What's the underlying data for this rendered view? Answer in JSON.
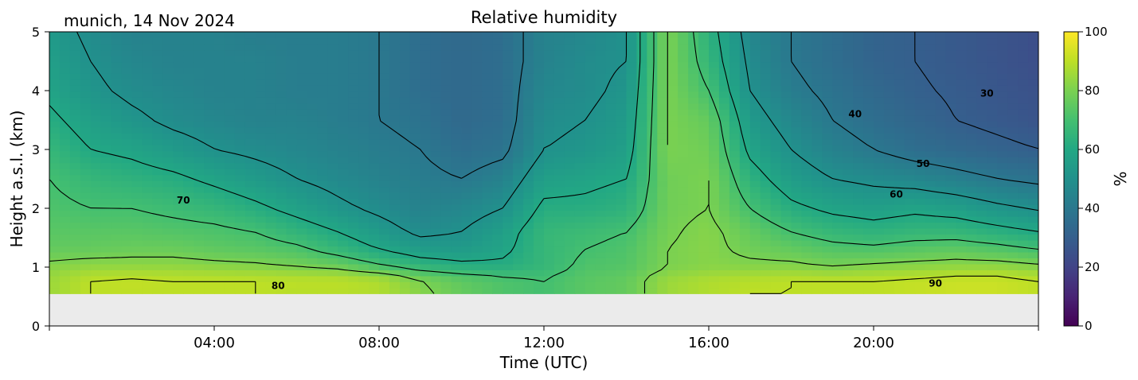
{
  "chart_data": {
    "type": "heatmap",
    "title": "Relative humidity",
    "location_label": "munich, 14 Nov 2024",
    "xlabel": "Time (UTC)",
    "ylabel": "Height a.s.l. (km)",
    "x_unit": "hours UTC",
    "xlim": [
      0,
      24
    ],
    "ylim": [
      0,
      5
    ],
    "x_ticks": [
      {
        "value": 4,
        "label": "04:00"
      },
      {
        "value": 8,
        "label": "08:00"
      },
      {
        "value": 12,
        "label": "12:00"
      },
      {
        "value": 16,
        "label": "16:00"
      },
      {
        "value": 20,
        "label": "20:00"
      }
    ],
    "y_ticks": [
      0,
      1,
      2,
      3,
      4,
      5
    ],
    "data_bottom_km": 0.55,
    "colormap": "viridis",
    "colorbar": {
      "label": "%",
      "range": [
        0,
        100
      ],
      "ticks": [
        0,
        20,
        40,
        60,
        80,
        100
      ]
    },
    "no_data_color": "#ebebeb",
    "heights_km": [
      0.55,
      0.8,
      1.0,
      1.3,
      1.6,
      2.0,
      2.5,
      3.0,
      3.5,
      4.0,
      4.5,
      5.0
    ],
    "times_h": [
      0,
      1,
      2,
      3,
      4,
      5,
      6,
      7,
      8,
      9,
      10,
      11,
      12,
      13,
      14,
      15,
      16,
      17,
      18,
      19,
      20,
      21,
      22,
      23,
      24
    ],
    "rh_percent": [
      [
        85,
        90,
        90,
        90,
        90,
        90,
        89,
        89,
        88,
        82,
        76,
        72,
        70,
        74,
        76,
        85,
        88,
        90,
        90,
        90,
        90,
        91,
        92,
        92,
        90
      ],
      [
        85,
        90,
        91,
        90,
        90,
        90,
        90,
        90,
        88,
        80,
        75,
        72,
        70,
        74,
        76,
        85,
        88,
        89,
        90,
        90,
        90,
        91,
        92,
        92,
        90
      ],
      [
        82,
        84,
        84,
        84,
        83,
        82,
        80,
        78,
        72,
        66,
        63,
        62,
        66,
        72,
        73,
        80,
        82,
        82,
        82,
        80,
        82,
        83,
        84,
        84,
        82
      ],
      [
        76,
        76,
        77,
        77,
        75,
        74,
        72,
        66,
        60,
        55,
        54,
        58,
        66,
        70,
        72,
        80,
        82,
        78,
        76,
        73,
        72,
        74,
        75,
        73,
        70
      ],
      [
        74,
        74,
        74,
        73,
        72,
        70,
        65,
        60,
        54,
        48,
        50,
        56,
        66,
        68,
        70,
        79,
        82,
        76,
        70,
        66,
        64,
        66,
        66,
        63,
        60
      ],
      [
        72,
        70,
        70,
        68,
        66,
        62,
        57,
        52,
        48,
        44,
        46,
        50,
        62,
        62,
        64,
        78,
        80,
        70,
        62,
        58,
        56,
        58,
        56,
        52,
        49
      ],
      [
        70,
        66,
        64,
        62,
        58,
        54,
        50,
        47,
        44,
        42,
        40,
        44,
        56,
        58,
        60,
        78,
        80,
        64,
        55,
        50,
        48,
        46,
        43,
        40,
        38
      ],
      [
        66,
        60,
        58,
        54,
        50,
        48,
        46,
        44,
        42,
        40,
        36,
        38,
        50,
        52,
        56,
        80,
        78,
        58,
        50,
        44,
        40,
        36,
        34,
        32,
        30
      ],
      [
        62,
        56,
        52,
        48,
        46,
        44,
        44,
        42,
        40,
        38,
        34,
        36,
        48,
        50,
        54,
        80,
        76,
        54,
        46,
        40,
        36,
        33,
        30,
        28,
        26
      ],
      [
        58,
        52,
        48,
        46,
        44,
        44,
        42,
        42,
        40,
        36,
        34,
        36,
        46,
        48,
        52,
        80,
        70,
        50,
        42,
        38,
        34,
        31,
        29,
        27,
        25
      ],
      [
        56,
        50,
        46,
        44,
        44,
        44,
        42,
        42,
        40,
        36,
        34,
        36,
        44,
        48,
        50,
        80,
        66,
        48,
        40,
        36,
        32,
        30,
        28,
        26,
        24
      ],
      [
        54,
        48,
        44,
        44,
        44,
        42,
        42,
        42,
        40,
        36,
        34,
        36,
        44,
        46,
        50,
        80,
        64,
        46,
        40,
        36,
        32,
        30,
        28,
        26,
        24
      ]
    ],
    "contour_levels": [
      30,
      40,
      50,
      60,
      70,
      80,
      90
    ],
    "contour_labels": [
      {
        "text": "30",
        "x": 22.75,
        "y": 3.9
      },
      {
        "text": "40",
        "x": 19.55,
        "y": 3.55
      },
      {
        "text": "50",
        "x": 21.2,
        "y": 2.7
      },
      {
        "text": "60",
        "x": 20.55,
        "y": 2.18
      },
      {
        "text": "70",
        "x": 3.25,
        "y": 2.08
      },
      {
        "text": "80",
        "x": 5.55,
        "y": 0.63
      },
      {
        "text": "90",
        "x": 21.5,
        "y": 0.67
      }
    ]
  }
}
